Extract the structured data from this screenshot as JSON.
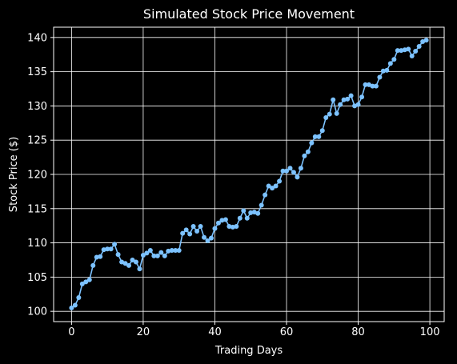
{
  "chart_data": {
    "type": "line",
    "title": "Simulated Stock Price Movement",
    "xlabel": "Trading Days",
    "ylabel": "Stock Price ($)",
    "xlim": [
      -5,
      104
    ],
    "ylim": [
      98.5,
      141.5
    ],
    "xticks": [
      0,
      20,
      40,
      60,
      80,
      100
    ],
    "yticks": [
      100,
      105,
      110,
      115,
      120,
      125,
      130,
      135,
      140
    ],
    "grid": true,
    "colors": {
      "background": "#000000",
      "foreground": "#ffffff",
      "series": "#7cc2ff"
    },
    "series": [
      {
        "name": "",
        "x": [
          0,
          1,
          2,
          3,
          4,
          5,
          6,
          7,
          8,
          9,
          10,
          11,
          12,
          13,
          14,
          15,
          16,
          17,
          18,
          19,
          20,
          21,
          22,
          23,
          24,
          25,
          26,
          27,
          28,
          29,
          30,
          31,
          32,
          33,
          34,
          35,
          36,
          37,
          38,
          39,
          40,
          41,
          42,
          43,
          44,
          45,
          46,
          47,
          48,
          49,
          50,
          51,
          52,
          53,
          54,
          55,
          56,
          57,
          58,
          59,
          60,
          61,
          62,
          63,
          64,
          65,
          66,
          67,
          68,
          69,
          70,
          71,
          72,
          73,
          74,
          75,
          76,
          77,
          78,
          79,
          80,
          81,
          82,
          83,
          84,
          85,
          86,
          87,
          88,
          89,
          90,
          91,
          92,
          93,
          94,
          95,
          96,
          97,
          98,
          99
        ],
        "y": [
          100.5,
          100.9,
          102.0,
          104.0,
          104.3,
          104.6,
          106.7,
          107.9,
          108.0,
          109.0,
          109.1,
          109.1,
          109.8,
          108.3,
          107.2,
          107.0,
          106.7,
          107.5,
          107.2,
          106.2,
          108.2,
          108.5,
          108.9,
          108.1,
          108.1,
          108.6,
          108.1,
          108.8,
          108.9,
          108.9,
          108.9,
          111.4,
          111.9,
          111.3,
          112.4,
          111.7,
          112.4,
          110.8,
          110.3,
          110.7,
          112.1,
          112.9,
          113.3,
          113.4,
          112.4,
          112.3,
          112.4,
          113.6,
          114.7,
          113.6,
          114.4,
          114.5,
          114.3,
          115.5,
          117.0,
          118.3,
          118.0,
          118.3,
          119.0,
          120.5,
          120.5,
          120.9,
          120.3,
          119.6,
          120.9,
          122.7,
          123.3,
          124.6,
          125.5,
          125.5,
          126.4,
          128.3,
          128.8,
          130.9,
          128.9,
          130.2,
          130.9,
          131.0,
          131.5,
          130.0,
          130.2,
          131.3,
          133.1,
          133.1,
          132.9,
          132.9,
          134.2,
          135.1,
          135.2,
          136.2,
          136.8,
          138.1,
          138.1,
          138.2,
          138.3,
          137.3,
          138.0,
          138.7,
          139.4,
          139.6
        ]
      }
    ]
  }
}
